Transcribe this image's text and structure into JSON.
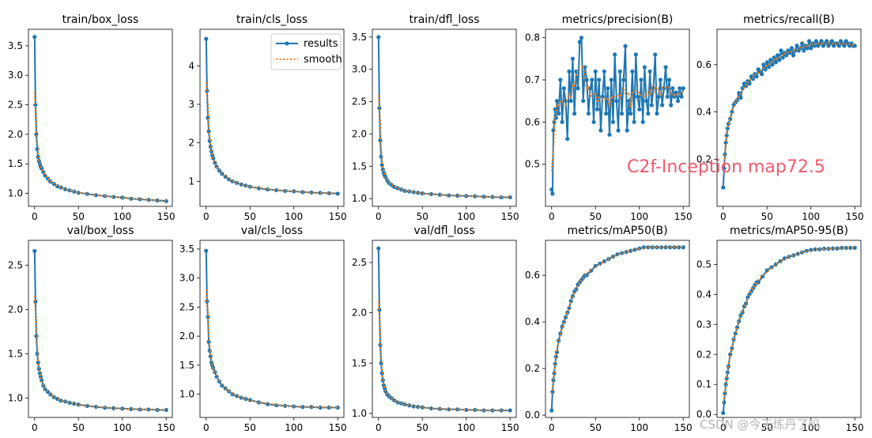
{
  "chart_data": [
    {
      "type": "line",
      "title": "train/box_loss",
      "ylim": [
        0.78,
        3.78
      ],
      "yticks": [
        1.0,
        1.5,
        2.0,
        2.5,
        3.0,
        3.5
      ],
      "xlim": [
        -7,
        157
      ],
      "xticks": [
        0,
        50,
        100,
        150
      ],
      "x": [
        0,
        1,
        2,
        3,
        4,
        5,
        6,
        7,
        8,
        10,
        12,
        15,
        18,
        22,
        26,
        30,
        35,
        40,
        45,
        50,
        60,
        70,
        80,
        90,
        100,
        110,
        120,
        130,
        140,
        150
      ],
      "y": [
        3.65,
        2.5,
        2.0,
        1.75,
        1.62,
        1.55,
        1.5,
        1.45,
        1.42,
        1.36,
        1.3,
        1.25,
        1.2,
        1.16,
        1.12,
        1.1,
        1.07,
        1.05,
        1.03,
        1.01,
        0.99,
        0.97,
        0.955,
        0.94,
        0.93,
        0.91,
        0.9,
        0.89,
        0.88,
        0.87
      ]
    },
    {
      "type": "line",
      "title": "train/cls_loss",
      "ylim": [
        0.35,
        4.95
      ],
      "yticks": [
        1,
        2,
        3,
        4
      ],
      "xlim": [
        -7,
        157
      ],
      "xticks": [
        0,
        50,
        100,
        150
      ],
      "x": [
        0,
        1,
        2,
        3,
        4,
        5,
        6,
        7,
        8,
        10,
        12,
        15,
        18,
        22,
        26,
        30,
        35,
        40,
        45,
        50,
        60,
        70,
        80,
        90,
        100,
        110,
        120,
        130,
        140,
        150
      ],
      "y": [
        4.7,
        3.35,
        2.65,
        2.3,
        2.05,
        1.9,
        1.78,
        1.68,
        1.6,
        1.48,
        1.38,
        1.28,
        1.2,
        1.12,
        1.05,
        1.0,
        0.96,
        0.92,
        0.89,
        0.86,
        0.82,
        0.79,
        0.77,
        0.75,
        0.74,
        0.72,
        0.71,
        0.7,
        0.69,
        0.68
      ],
      "legend": [
        "results",
        "smooth"
      ]
    },
    {
      "type": "line",
      "title": "train/dfl_loss",
      "ylim": [
        0.88,
        3.62
      ],
      "yticks": [
        1.0,
        1.5,
        2.0,
        2.5,
        3.0,
        3.5
      ],
      "xlim": [
        -7,
        157
      ],
      "xticks": [
        0,
        50,
        100,
        150
      ],
      "x": [
        0,
        1,
        2,
        3,
        4,
        5,
        6,
        7,
        8,
        10,
        12,
        15,
        18,
        22,
        26,
        30,
        35,
        40,
        45,
        50,
        60,
        70,
        80,
        90,
        100,
        110,
        120,
        130,
        140,
        150
      ],
      "y": [
        3.5,
        2.4,
        1.9,
        1.65,
        1.52,
        1.45,
        1.4,
        1.36,
        1.33,
        1.28,
        1.24,
        1.21,
        1.18,
        1.16,
        1.14,
        1.12,
        1.11,
        1.1,
        1.09,
        1.08,
        1.07,
        1.06,
        1.05,
        1.045,
        1.04,
        1.035,
        1.03,
        1.025,
        1.02,
        1.02
      ]
    },
    {
      "type": "line",
      "title": "metrics/precision(B)",
      "ylim": [
        0.4,
        0.82
      ],
      "yticks": [
        0.5,
        0.6,
        0.7,
        0.8
      ],
      "xlim": [
        -7,
        157
      ],
      "xticks": [
        0,
        50,
        100,
        150
      ],
      "x": [
        0,
        1,
        2,
        3,
        4,
        5,
        6,
        8,
        10,
        12,
        14,
        16,
        18,
        20,
        22,
        24,
        26,
        28,
        30,
        32,
        34,
        36,
        38,
        40,
        42,
        44,
        46,
        48,
        50,
        52,
        54,
        56,
        58,
        60,
        62,
        64,
        66,
        68,
        70,
        72,
        74,
        76,
        78,
        80,
        82,
        84,
        86,
        88,
        90,
        92,
        94,
        96,
        98,
        100,
        102,
        104,
        106,
        108,
        110,
        112,
        114,
        116,
        118,
        120,
        122,
        124,
        126,
        128,
        130,
        132,
        134,
        136,
        138,
        140,
        142,
        144,
        146,
        148,
        150
      ],
      "y": [
        0.44,
        0.43,
        0.58,
        0.6,
        0.63,
        0.61,
        0.65,
        0.62,
        0.7,
        0.6,
        0.68,
        0.65,
        0.56,
        0.72,
        0.65,
        0.75,
        0.62,
        0.72,
        0.68,
        0.79,
        0.8,
        0.65,
        0.73,
        0.7,
        0.62,
        0.68,
        0.7,
        0.6,
        0.72,
        0.63,
        0.7,
        0.58,
        0.66,
        0.72,
        0.62,
        0.68,
        0.57,
        0.7,
        0.6,
        0.76,
        0.65,
        0.58,
        0.72,
        0.62,
        0.7,
        0.78,
        0.58,
        0.65,
        0.62,
        0.72,
        0.6,
        0.76,
        0.66,
        0.63,
        0.7,
        0.6,
        0.73,
        0.65,
        0.62,
        0.72,
        0.64,
        0.68,
        0.76,
        0.62,
        0.66,
        0.7,
        0.64,
        0.68,
        0.73,
        0.66,
        0.7,
        0.64,
        0.68,
        0.66,
        0.67,
        0.65,
        0.68,
        0.66,
        0.68
      ]
    },
    {
      "type": "line",
      "title": "metrics/recall(B)",
      "ylim": [
        0.0,
        0.75
      ],
      "yticks": [
        0.2,
        0.4,
        0.6
      ],
      "xlim": [
        -7,
        157
      ],
      "xticks": [
        0,
        50,
        100,
        150
      ],
      "x": [
        0,
        1,
        2,
        3,
        4,
        5,
        6,
        8,
        10,
        12,
        14,
        16,
        18,
        20,
        22,
        24,
        26,
        28,
        30,
        32,
        34,
        36,
        38,
        40,
        42,
        44,
        46,
        48,
        50,
        52,
        54,
        56,
        58,
        60,
        62,
        64,
        66,
        68,
        70,
        72,
        74,
        76,
        78,
        80,
        82,
        84,
        86,
        88,
        90,
        92,
        94,
        96,
        98,
        100,
        102,
        104,
        106,
        108,
        110,
        112,
        114,
        116,
        118,
        120,
        122,
        124,
        126,
        128,
        130,
        132,
        134,
        136,
        138,
        140,
        142,
        144,
        146,
        148,
        150
      ],
      "y": [
        0.08,
        0.16,
        0.22,
        0.27,
        0.3,
        0.33,
        0.35,
        0.37,
        0.4,
        0.43,
        0.44,
        0.45,
        0.48,
        0.46,
        0.5,
        0.52,
        0.51,
        0.53,
        0.52,
        0.55,
        0.54,
        0.56,
        0.55,
        0.58,
        0.57,
        0.56,
        0.6,
        0.58,
        0.61,
        0.59,
        0.62,
        0.6,
        0.63,
        0.61,
        0.64,
        0.62,
        0.66,
        0.63,
        0.65,
        0.64,
        0.66,
        0.65,
        0.67,
        0.64,
        0.66,
        0.68,
        0.66,
        0.67,
        0.69,
        0.66,
        0.68,
        0.67,
        0.7,
        0.67,
        0.69,
        0.68,
        0.7,
        0.68,
        0.69,
        0.7,
        0.68,
        0.69,
        0.7,
        0.68,
        0.69,
        0.7,
        0.68,
        0.69,
        0.69,
        0.68,
        0.7,
        0.69,
        0.68,
        0.7,
        0.69,
        0.68,
        0.69,
        0.68,
        0.68
      ]
    },
    {
      "type": "line",
      "title": "val/box_loss",
      "ylim": [
        0.78,
        2.78
      ],
      "yticks": [
        1.0,
        1.5,
        2.0,
        2.5
      ],
      "xlim": [
        -7,
        157
      ],
      "xticks": [
        0,
        50,
        100,
        150
      ],
      "x": [
        0,
        1,
        2,
        3,
        4,
        5,
        6,
        7,
        8,
        10,
        12,
        15,
        18,
        22,
        26,
        30,
        35,
        40,
        45,
        50,
        60,
        70,
        80,
        90,
        100,
        110,
        120,
        130,
        140,
        150
      ],
      "y": [
        2.66,
        2.09,
        1.7,
        1.5,
        1.4,
        1.33,
        1.28,
        1.24,
        1.2,
        1.14,
        1.1,
        1.07,
        1.04,
        1.01,
        0.99,
        0.97,
        0.96,
        0.945,
        0.935,
        0.925,
        0.91,
        0.9,
        0.89,
        0.885,
        0.88,
        0.875,
        0.87,
        0.87,
        0.865,
        0.865
      ]
    },
    {
      "type": "line",
      "title": "val/cls_loss",
      "ylim": [
        0.6,
        3.65
      ],
      "yticks": [
        1.0,
        1.5,
        2.0,
        2.5,
        3.0,
        3.5
      ],
      "xlim": [
        -7,
        157
      ],
      "xticks": [
        0,
        50,
        100,
        150
      ],
      "x": [
        0,
        1,
        2,
        3,
        4,
        5,
        6,
        7,
        8,
        10,
        12,
        15,
        18,
        22,
        26,
        30,
        35,
        40,
        45,
        50,
        60,
        70,
        80,
        90,
        100,
        110,
        120,
        130,
        140,
        150
      ],
      "y": [
        3.47,
        2.6,
        2.33,
        1.9,
        1.75,
        1.65,
        1.55,
        1.5,
        1.45,
        1.38,
        1.3,
        1.22,
        1.15,
        1.1,
        1.05,
        1.0,
        0.97,
        0.94,
        0.92,
        0.9,
        0.86,
        0.83,
        0.81,
        0.8,
        0.79,
        0.78,
        0.78,
        0.77,
        0.77,
        0.77
      ]
    },
    {
      "type": "line",
      "title": "val/dfl_loss",
      "ylim": [
        0.96,
        2.72
      ],
      "yticks": [
        1.0,
        1.5,
        2.0,
        2.5
      ],
      "xlim": [
        -7,
        157
      ],
      "xticks": [
        0,
        50,
        100,
        150
      ],
      "x": [
        0,
        1,
        2,
        3,
        4,
        5,
        6,
        7,
        8,
        10,
        12,
        15,
        18,
        22,
        26,
        30,
        35,
        40,
        45,
        50,
        60,
        70,
        80,
        90,
        100,
        110,
        120,
        130,
        140,
        150
      ],
      "y": [
        2.64,
        2.03,
        1.68,
        1.5,
        1.4,
        1.33,
        1.28,
        1.25,
        1.22,
        1.19,
        1.17,
        1.15,
        1.13,
        1.11,
        1.1,
        1.09,
        1.08,
        1.07,
        1.065,
        1.06,
        1.05,
        1.045,
        1.04,
        1.04,
        1.035,
        1.035,
        1.03,
        1.03,
        1.03,
        1.03
      ]
    },
    {
      "type": "line",
      "title": "metrics/mAP50(B)",
      "ylim": [
        -0.01,
        0.75
      ],
      "yticks": [
        0.0,
        0.2,
        0.4,
        0.6
      ],
      "xlim": [
        -7,
        157
      ],
      "xticks": [
        0,
        50,
        100,
        150
      ],
      "x": [
        0,
        1,
        2,
        3,
        4,
        5,
        6,
        8,
        10,
        12,
        14,
        16,
        18,
        20,
        22,
        24,
        26,
        28,
        30,
        32,
        34,
        36,
        38,
        40,
        45,
        50,
        55,
        60,
        65,
        70,
        75,
        80,
        85,
        90,
        95,
        100,
        105,
        110,
        115,
        120,
        125,
        130,
        135,
        140,
        145,
        150
      ],
      "y": [
        0.02,
        0.1,
        0.15,
        0.18,
        0.22,
        0.25,
        0.27,
        0.32,
        0.35,
        0.38,
        0.4,
        0.42,
        0.44,
        0.46,
        0.49,
        0.51,
        0.53,
        0.54,
        0.56,
        0.57,
        0.58,
        0.59,
        0.6,
        0.6,
        0.62,
        0.64,
        0.65,
        0.66,
        0.67,
        0.68,
        0.69,
        0.695,
        0.7,
        0.705,
        0.71,
        0.715,
        0.72,
        0.72,
        0.72,
        0.72,
        0.72,
        0.72,
        0.72,
        0.72,
        0.72,
        0.72
      ]
    },
    {
      "type": "line",
      "title": "metrics/mAP50-95(B)",
      "ylim": [
        -0.01,
        0.58
      ],
      "yticks": [
        0.0,
        0.1,
        0.2,
        0.3,
        0.4,
        0.5
      ],
      "xlim": [
        -7,
        157
      ],
      "xticks": [
        0,
        50,
        100,
        150
      ],
      "x": [
        0,
        1,
        2,
        3,
        4,
        5,
        6,
        8,
        10,
        12,
        14,
        16,
        18,
        20,
        22,
        24,
        26,
        28,
        30,
        32,
        34,
        36,
        38,
        40,
        45,
        50,
        55,
        60,
        65,
        70,
        75,
        80,
        85,
        90,
        95,
        100,
        105,
        110,
        115,
        120,
        125,
        130,
        135,
        140,
        145,
        150
      ],
      "y": [
        0.005,
        0.04,
        0.07,
        0.1,
        0.12,
        0.14,
        0.16,
        0.2,
        0.22,
        0.25,
        0.27,
        0.29,
        0.31,
        0.33,
        0.34,
        0.36,
        0.37,
        0.39,
        0.4,
        0.41,
        0.42,
        0.43,
        0.44,
        0.44,
        0.46,
        0.48,
        0.49,
        0.5,
        0.51,
        0.52,
        0.525,
        0.53,
        0.535,
        0.54,
        0.545,
        0.548,
        0.55,
        0.55,
        0.552,
        0.552,
        0.553,
        0.553,
        0.555,
        0.555,
        0.555,
        0.555
      ]
    }
  ],
  "legend": {
    "results_label": "results",
    "smooth_label": "smooth"
  },
  "colors": {
    "results": "#1f77b4",
    "smooth": "#ff7f0e",
    "overlay": "#f05a6e",
    "watermark": "#b4b4b4"
  },
  "overlay_text": "C2f-Inception map72.5",
  "watermark_text": "CSDN @今天炼丹了吗"
}
